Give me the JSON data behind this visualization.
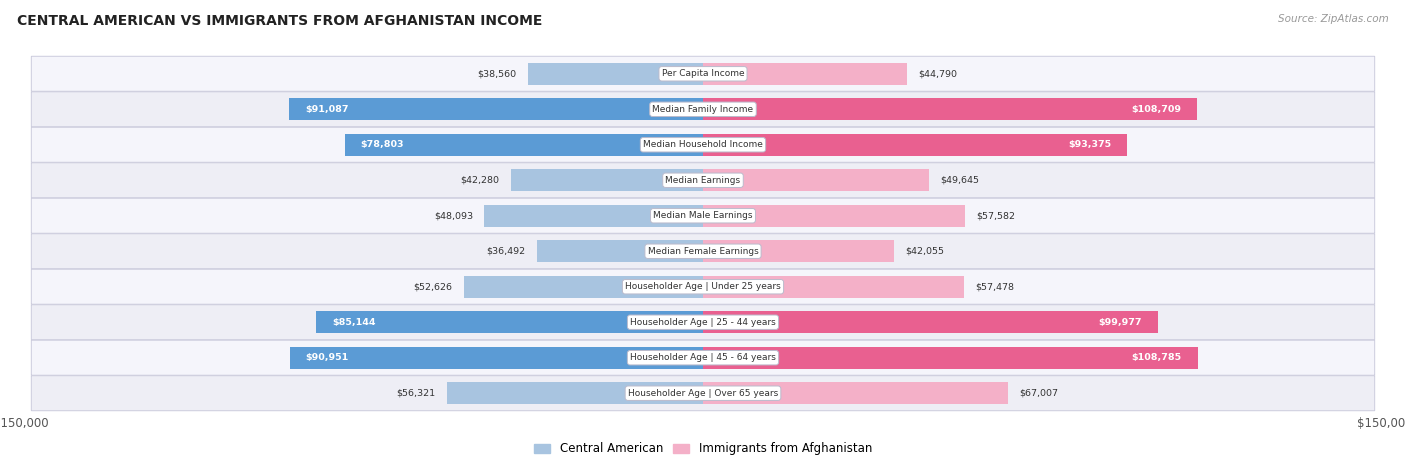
{
  "title": "CENTRAL AMERICAN VS IMMIGRANTS FROM AFGHANISTAN INCOME",
  "source": "Source: ZipAtlas.com",
  "categories": [
    "Per Capita Income",
    "Median Family Income",
    "Median Household Income",
    "Median Earnings",
    "Median Male Earnings",
    "Median Female Earnings",
    "Householder Age | Under 25 years",
    "Householder Age | 25 - 44 years",
    "Householder Age | 45 - 64 years",
    "Householder Age | Over 65 years"
  ],
  "central_american": [
    38560,
    91087,
    78803,
    42280,
    48093,
    36492,
    52626,
    85144,
    90951,
    56321
  ],
  "afghanistan": [
    44790,
    108709,
    93375,
    49645,
    57582,
    42055,
    57478,
    99977,
    108785,
    67007
  ],
  "max_val": 150000,
  "color_central_light": "#a8c4e0",
  "color_central_dark": "#5b9bd5",
  "color_afghanistan_light": "#f4b0c8",
  "color_afghanistan_dark": "#e96090",
  "row_bg_even": "#f0f0f8",
  "row_bg_odd": "#e8e8f0",
  "label_dark": "#333333",
  "label_white": "#ffffff",
  "legend_central": "Central American",
  "legend_afghanistan": "Immigrants from Afghanistan",
  "x_tick_label": "$150,000",
  "ca_dark_threshold": 75000,
  "af_dark_threshold": 85000
}
